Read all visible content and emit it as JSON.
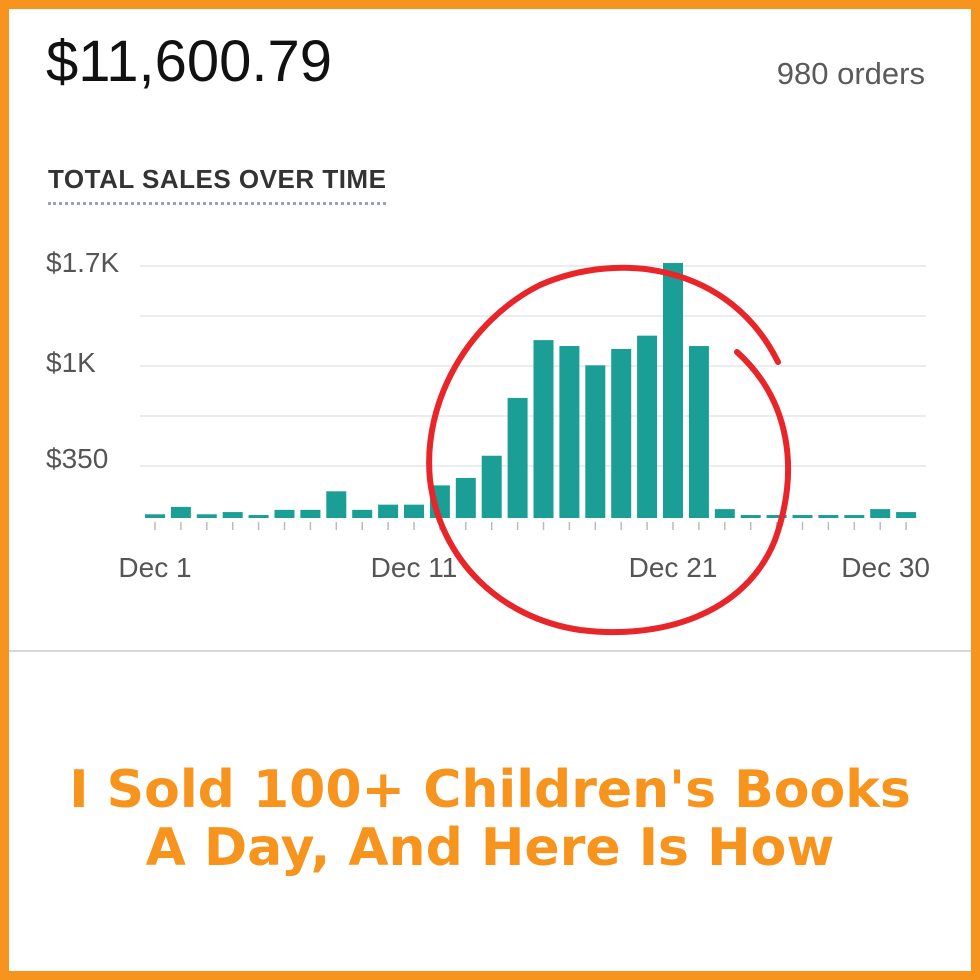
{
  "summary": {
    "total_sales": "$11,600.79",
    "orders": "980 orders"
  },
  "headline": {
    "line1": "I Sold 100+ Children's Books",
    "line2": "A Day, And Here Is How"
  },
  "colors": {
    "frame": "#f7941d",
    "bar": "#1a9e96",
    "circle": "#e8262a",
    "headline": "#f7941d"
  },
  "chart_data": {
    "type": "bar",
    "title": "TOTAL SALES OVER TIME",
    "y_tick_labels": [
      "$1.7K",
      "$1K",
      "$350"
    ],
    "x_tick_labels": [
      "Dec 1",
      "Dec 11",
      "Dec 21",
      "Dec 30"
    ],
    "categories": [
      "Dec 1",
      "Dec 2",
      "Dec 3",
      "Dec 4",
      "Dec 5",
      "Dec 6",
      "Dec 7",
      "Dec 8",
      "Dec 9",
      "Dec 10",
      "Dec 11",
      "Dec 12",
      "Dec 13",
      "Dec 14",
      "Dec 15",
      "Dec 16",
      "Dec 17",
      "Dec 18",
      "Dec 19",
      "Dec 20",
      "Dec 21",
      "Dec 22",
      "Dec 23",
      "Dec 24",
      "Dec 25",
      "Dec 26",
      "Dec 27",
      "Dec 28",
      "Dec 29",
      "Dec 30"
    ],
    "values": [
      25,
      75,
      25,
      40,
      20,
      55,
      55,
      180,
      55,
      90,
      90,
      220,
      270,
      420,
      810,
      1200,
      1160,
      1030,
      1140,
      1230,
      1720,
      1160,
      60,
      20,
      20,
      20,
      20,
      20,
      60,
      40
    ],
    "ylim": [
      0,
      1700
    ],
    "grid": true,
    "annotation": "red hand-drawn circle around Dec 12 - Dec 22 bars"
  }
}
